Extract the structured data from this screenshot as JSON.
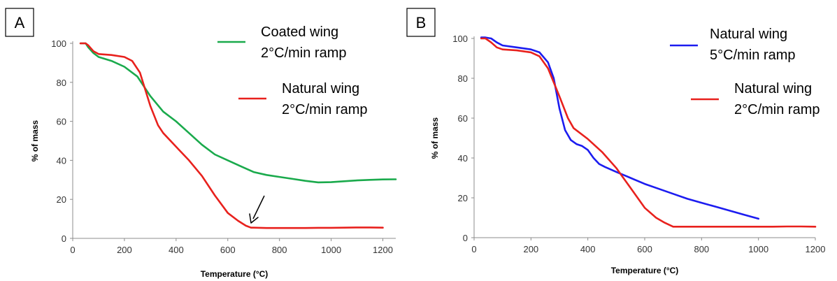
{
  "chart_data": [
    {
      "type": "line",
      "panel_label": "A",
      "xlabel": "Temperature (°C)",
      "ylabel": "% of mass",
      "xlim": [
        0,
        1250
      ],
      "ylim": [
        0,
        100
      ],
      "xticks": [
        "0",
        "200",
        "400",
        "600",
        "800",
        "1000",
        "1200"
      ],
      "yticks": [
        "0",
        "20",
        "40",
        "60",
        "80",
        "100"
      ],
      "grid": false,
      "legend_placement": "top-right",
      "annotation": "arrow pointing at the Natural wing curve near 690 °C",
      "series": [
        {
          "name": "Coated wing\n2°C/min ramp",
          "color": "#1aaa4c",
          "x": [
            30,
            50,
            60,
            80,
            100,
            150,
            200,
            250,
            300,
            350,
            400,
            450,
            500,
            550,
            600,
            650,
            700,
            750,
            800,
            850,
            900,
            950,
            1000,
            1050,
            1100,
            1150,
            1200,
            1250
          ],
          "y": [
            100,
            100,
            98,
            95,
            93,
            91,
            88,
            83,
            73,
            65,
            60,
            54,
            48,
            43,
            40,
            37,
            34,
            32.5,
            31.5,
            30.5,
            29.5,
            28.7,
            28.8,
            29.3,
            29.7,
            30,
            30.2,
            30.3
          ]
        },
        {
          "name": "Natural wing\n2°C/min ramp",
          "color": "#e8211d",
          "x": [
            30,
            50,
            60,
            80,
            100,
            150,
            200,
            230,
            260,
            300,
            330,
            350,
            400,
            450,
            500,
            550,
            600,
            640,
            670,
            690,
            700,
            750,
            800,
            850,
            900,
            950,
            1000,
            1050,
            1100,
            1150,
            1200
          ],
          "y": [
            100,
            100,
            99,
            96,
            94.5,
            94,
            93,
            91,
            85,
            68,
            58,
            54,
            47,
            40,
            32,
            22,
            13,
            9,
            6.5,
            5.5,
            5.5,
            5.3,
            5.3,
            5.3,
            5.3,
            5.4,
            5.4,
            5.5,
            5.6,
            5.6,
            5.5
          ]
        }
      ]
    },
    {
      "type": "line",
      "panel_label": "B",
      "xlabel": "Temperature (°C)",
      "ylabel": "% of mass",
      "xlim": [
        0,
        1200
      ],
      "ylim": [
        0,
        100
      ],
      "xticks": [
        "0",
        "200",
        "400",
        "600",
        "800",
        "1000",
        "1200"
      ],
      "yticks": [
        "0",
        "20",
        "40",
        "60",
        "80",
        "100"
      ],
      "grid": false,
      "legend_placement": "top-right",
      "series": [
        {
          "name": "Natural wing\n5°C/min ramp",
          "color": "#1c1cf0",
          "x": [
            25,
            40,
            60,
            80,
            100,
            150,
            200,
            230,
            260,
            280,
            300,
            320,
            340,
            360,
            380,
            400,
            420,
            440,
            460,
            500,
            550,
            600,
            650,
            700,
            750,
            800,
            850,
            900,
            950,
            1000
          ],
          "y": [
            100.5,
            100.5,
            100,
            98,
            96.5,
            95.5,
            94.5,
            93,
            88,
            80,
            65,
            54,
            49,
            47,
            46,
            44,
            40,
            37,
            35.5,
            33,
            30,
            27,
            24.5,
            22,
            19.5,
            17.5,
            15.5,
            13.5,
            11.5,
            9.5
          ]
        },
        {
          "name": "Natural wing\n2°C/min ramp",
          "color": "#e8211d",
          "x": [
            25,
            40,
            60,
            80,
            100,
            150,
            200,
            230,
            260,
            300,
            330,
            350,
            400,
            450,
            500,
            550,
            600,
            640,
            670,
            700,
            750,
            800,
            850,
            900,
            950,
            1000,
            1050,
            1100,
            1150,
            1200
          ],
          "y": [
            100,
            100,
            98,
            95.5,
            94.5,
            94,
            93,
            91,
            85,
            71,
            60,
            55,
            49.5,
            43,
            35,
            25,
            15,
            10,
            7.5,
            5.5,
            5.5,
            5.5,
            5.5,
            5.5,
            5.5,
            5.5,
            5.5,
            5.6,
            5.6,
            5.5
          ]
        }
      ]
    }
  ]
}
